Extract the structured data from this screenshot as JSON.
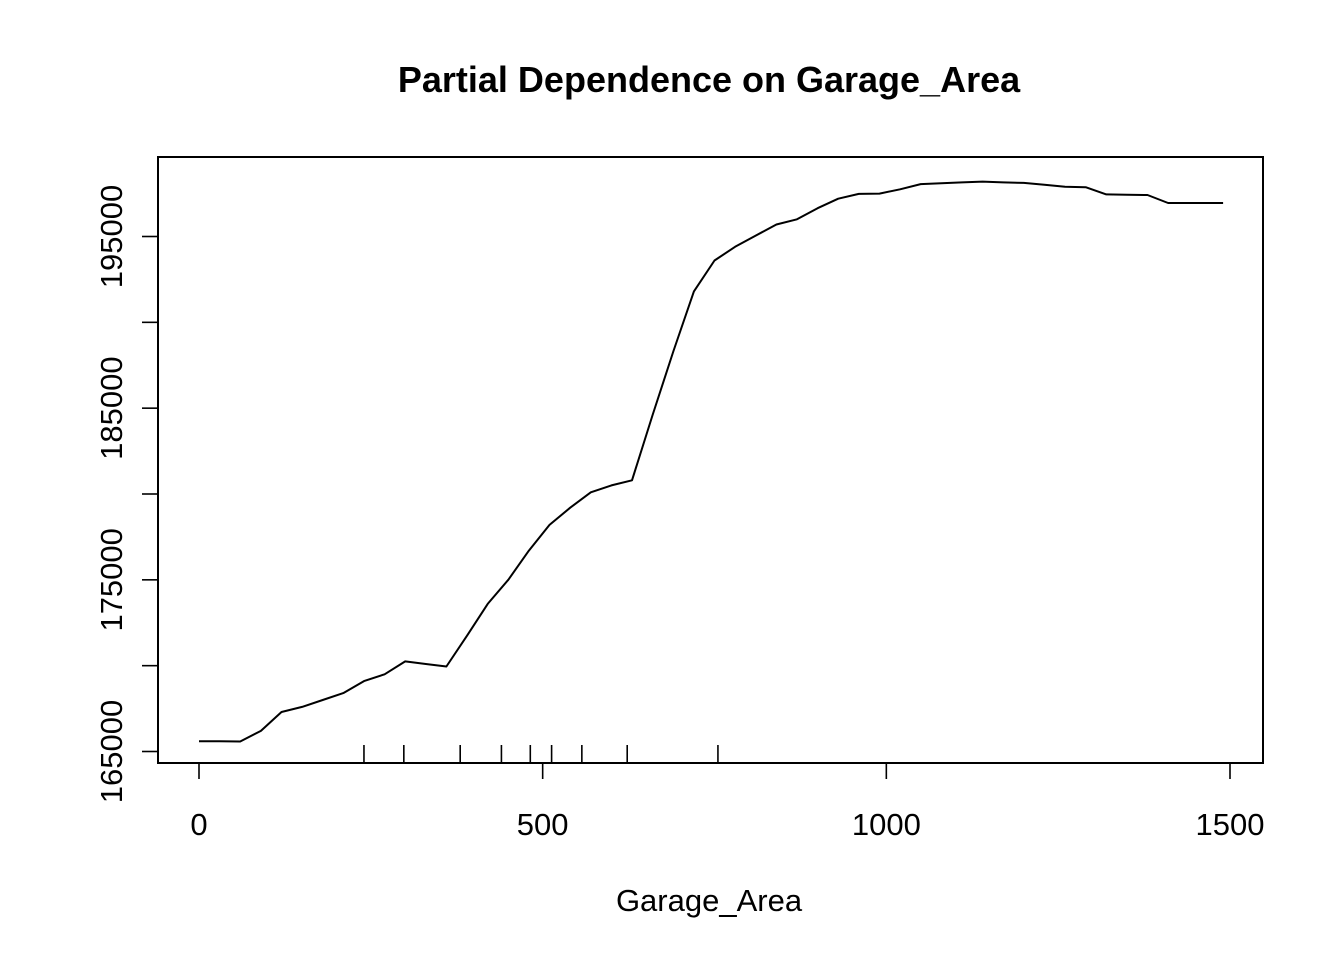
{
  "chart_data": {
    "type": "line",
    "title": "Partial Dependence on Garage_Area",
    "xlabel": "Garage_Area",
    "ylabel": "",
    "xlim": [
      0,
      1500
    ],
    "ylim": [
      165000,
      197000
    ],
    "x_ticks": [
      0,
      500,
      1000,
      1500
    ],
    "x_tick_labels": [
      "0",
      "500",
      "1000",
      "1500"
    ],
    "y_ticks": [
      165000,
      170000,
      175000,
      180000,
      185000,
      190000,
      195000
    ],
    "y_tick_labels": [
      "165000",
      "",
      "175000",
      "",
      "185000",
      "",
      "195000"
    ],
    "grid": false,
    "legend": "none",
    "series": [
      {
        "x": [
          0,
          30,
          60,
          90,
          120,
          150,
          180,
          210,
          240,
          270,
          300,
          330,
          360,
          390,
          420,
          450,
          480,
          510,
          540,
          570,
          600,
          630,
          660,
          690,
          720,
          750,
          780,
          810,
          840,
          870,
          900,
          930,
          960,
          990,
          1020,
          1050,
          1080,
          1110,
          1140,
          1170,
          1200,
          1230,
          1260,
          1290,
          1320,
          1350,
          1380,
          1410,
          1440,
          1490
        ],
        "y": [
          165600,
          165600,
          165580,
          166200,
          167300,
          167600,
          168000,
          168400,
          169100,
          169500,
          170250,
          170100,
          169950,
          171750,
          173600,
          175000,
          176700,
          178200,
          179200,
          180100,
          180500,
          180800,
          184600,
          188300,
          191800,
          193600,
          194400,
          195050,
          195700,
          196000,
          196650,
          197200,
          197480,
          197500,
          197750,
          198050,
          198100,
          198150,
          198200,
          198150,
          198120,
          198020,
          197900,
          197870,
          197450,
          197430,
          197420,
          196950,
          196950,
          196950
        ]
      }
    ],
    "rug": [
      240,
      298,
      380,
      440,
      482,
      513,
      557,
      623,
      755
    ]
  }
}
